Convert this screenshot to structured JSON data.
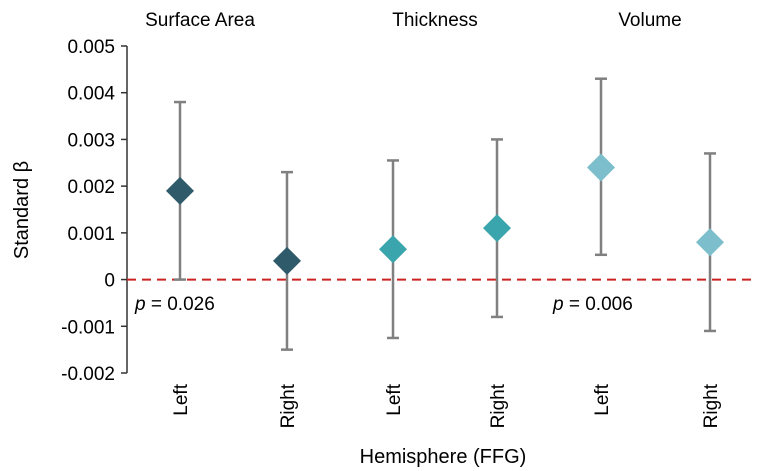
{
  "chart_data": {
    "type": "scatter",
    "ylabel": "Standard β",
    "xlabel": "Hemisphere (FFG)",
    "ylim": [
      -0.002,
      0.005
    ],
    "yticks": [
      {
        "value": 0.005,
        "label": "0.005"
      },
      {
        "value": 0.004,
        "label": "0.004"
      },
      {
        "value": 0.003,
        "label": "0.003"
      },
      {
        "value": 0.002,
        "label": "0.002"
      },
      {
        "value": 0.001,
        "label": "0.001"
      },
      {
        "value": 0,
        "label": "0"
      },
      {
        "value": -0.001,
        "label": "-0.001"
      },
      {
        "value": -0.002,
        "label": "-0.002"
      }
    ],
    "reference_line": {
      "y": 0,
      "style": "dashed",
      "color": "#cc2222"
    },
    "groups": [
      {
        "name": "Surface Area",
        "color": "#2e5a69",
        "points": [
          {
            "category": "Left",
            "value": 0.0019,
            "ci_low": 0.0,
            "ci_high": 0.0038
          },
          {
            "category": "Right",
            "value": 0.0004,
            "ci_low": -0.0015,
            "ci_high": 0.0023
          }
        ]
      },
      {
        "name": "Thickness",
        "color": "#3aa5ad",
        "points": [
          {
            "category": "Left",
            "value": 0.00065,
            "ci_low": -0.00125,
            "ci_high": 0.00255
          },
          {
            "category": "Right",
            "value": 0.0011,
            "ci_low": -0.0008,
            "ci_high": 0.003
          }
        ]
      },
      {
        "name": "Volume",
        "color": "#7cbecb",
        "points": [
          {
            "category": "Left",
            "value": 0.0024,
            "ci_low": 0.00053,
            "ci_high": 0.0043
          },
          {
            "category": "Right",
            "value": 0.0008,
            "ci_low": -0.0011,
            "ci_high": 0.0027
          }
        ]
      }
    ],
    "annotations": [
      {
        "group": "Surface Area",
        "italic": "p",
        "text": " = 0.026"
      },
      {
        "group": "Volume",
        "italic": "p",
        "text": " = 0.006"
      }
    ],
    "errorbar_color": "#808080",
    "grid": false
  }
}
